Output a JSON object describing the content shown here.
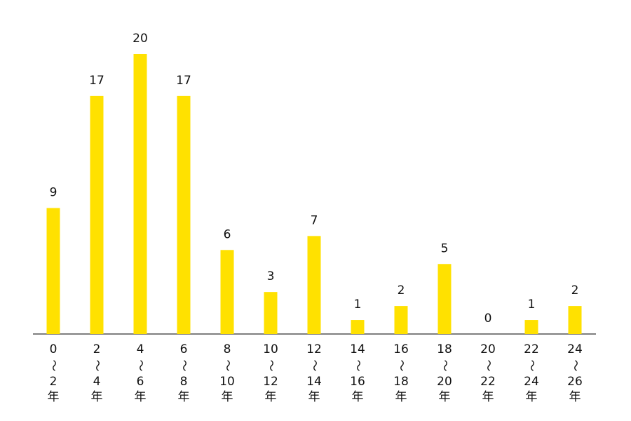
{
  "chart_data": {
    "type": "bar",
    "categories": [
      [
        "0",
        "～",
        "2",
        "年"
      ],
      [
        "2",
        "～",
        "4",
        "年"
      ],
      [
        "4",
        "～",
        "6",
        "年"
      ],
      [
        "6",
        "～",
        "8",
        "年"
      ],
      [
        "8",
        "～",
        "10",
        "年"
      ],
      [
        "10",
        "～",
        "12",
        "年"
      ],
      [
        "12",
        "～",
        "14",
        "年"
      ],
      [
        "14",
        "～",
        "16",
        "年"
      ],
      [
        "16",
        "～",
        "18",
        "年"
      ],
      [
        "18",
        "～",
        "20",
        "年"
      ],
      [
        "20",
        "～",
        "22",
        "年"
      ],
      [
        "22",
        "～",
        "24",
        "年"
      ],
      [
        "24",
        "～",
        "26",
        "年"
      ]
    ],
    "values": [
      9,
      17,
      20,
      17,
      6,
      3,
      7,
      1,
      2,
      5,
      0,
      1,
      2
    ],
    "color": "#ffe100",
    "ylim": [
      0,
      20
    ]
  }
}
